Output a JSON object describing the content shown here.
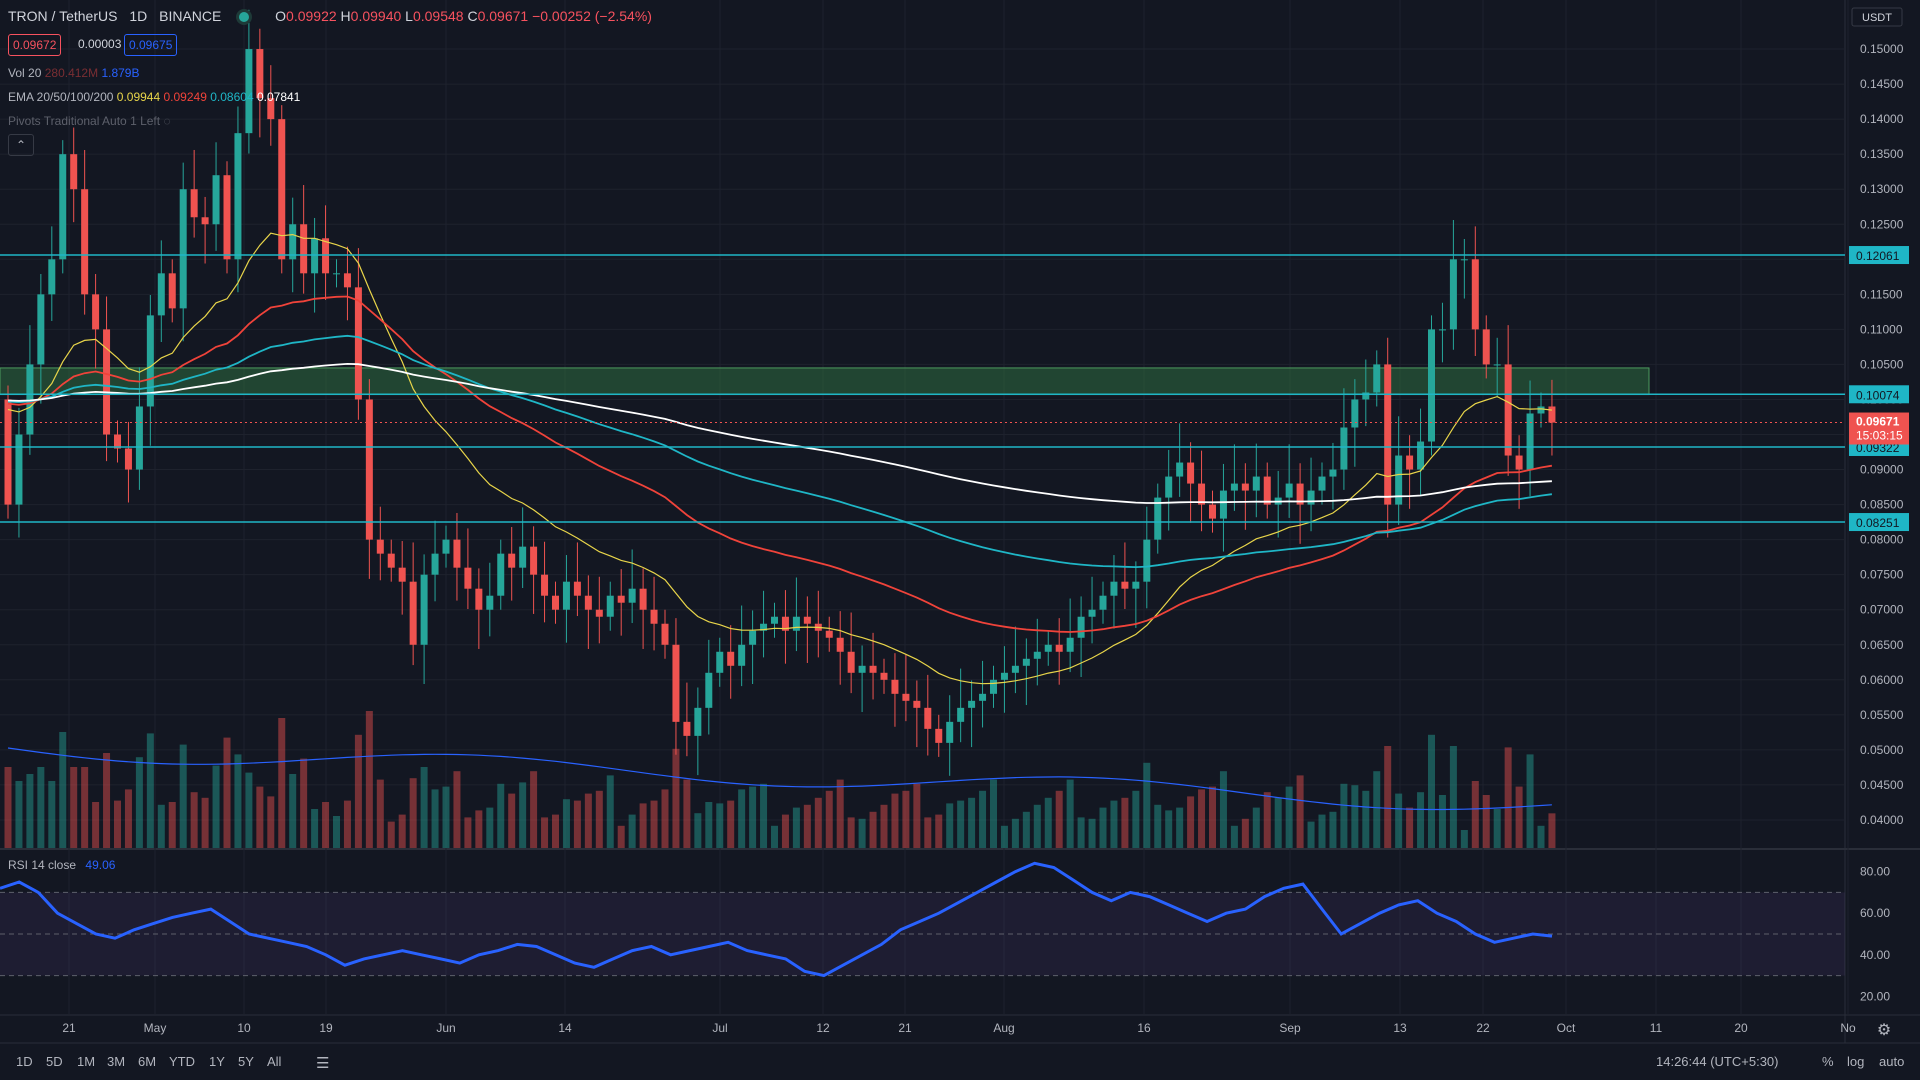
{
  "header": {
    "symbol": "TRON / TetherUS",
    "interval": "1D",
    "exchange": "BINANCE",
    "o_label": "O",
    "o": "0.09922",
    "h_label": "H",
    "h": "0.09940",
    "l_label": "L",
    "l": "0.09548",
    "c_label": "C",
    "c": "0.09671",
    "change": "−0.00252 (−2.54%)",
    "bid": "0.09672",
    "spread": "0.00003",
    "ask": "0.09675"
  },
  "indicators": {
    "vol_label": "Vol 20",
    "vol_value1": "280.412M",
    "vol_value2": "1.879B",
    "ema_label": "EMA 20/50/100/200",
    "ema20": "0.09944",
    "ema50": "0.09249",
    "ema100": "0.08604",
    "ema200": "0.07841",
    "pivots_label": "Pivots Traditional Auto 1 Left",
    "rsi_label": "RSI 14 close",
    "rsi_value": "49.06"
  },
  "price_axis": {
    "currency": "USDT",
    "ticks": [
      "0.15000",
      "0.14500",
      "0.14000",
      "0.13500",
      "0.13000",
      "0.12500",
      "0.12000",
      "0.11500",
      "0.11000",
      "0.10500",
      "0.10000",
      "0.09500",
      "0.09000",
      "0.08500",
      "0.08000",
      "0.07500",
      "0.07000",
      "0.06500",
      "0.06000",
      "0.05500",
      "0.05000",
      "0.04500",
      "0.04000"
    ],
    "levels": [
      "0.12061",
      "0.10074",
      "0.09322",
      "0.08251"
    ],
    "last_price": "0.09671",
    "countdown": "15:03:15"
  },
  "rsi_axis": {
    "ticks": [
      "80.00",
      "60.00",
      "40.00",
      "20.00"
    ]
  },
  "time_axis": {
    "labels": [
      "21",
      "May",
      "10",
      "19",
      "Jun",
      "14",
      "Jul",
      "12",
      "21",
      "Aug",
      "16",
      "Sep",
      "13",
      "22",
      "Oct",
      "11",
      "20",
      "No"
    ]
  },
  "bottom_bar": {
    "timeframes": [
      "1D",
      "5D",
      "1M",
      "3M",
      "6M",
      "YTD",
      "1Y",
      "5Y",
      "All"
    ],
    "clock": "14:26:44 (UTC+5:30)",
    "percent": "%",
    "log": "log",
    "auto": "auto"
  },
  "colors": {
    "up": "#26a69a",
    "down": "#ef5350",
    "ema20": "#e8d54a",
    "ema50": "#f0433a",
    "ema100": "#1fb6c6",
    "ema200": "#ffffff",
    "level": "#1fb6c6",
    "rsi": "#2962ff",
    "zone": "#2e6b3f"
  },
  "chart_data": {
    "type": "candlestick",
    "title": "TRON / TetherUS 1D BINANCE",
    "ylim": [
      0.036,
      0.157
    ],
    "closes": [
      0.085,
      0.095,
      0.105,
      0.115,
      0.12,
      0.135,
      0.13,
      0.115,
      0.11,
      0.095,
      0.093,
      0.09,
      0.099,
      0.112,
      0.118,
      0.113,
      0.13,
      0.126,
      0.125,
      0.132,
      0.12,
      0.138,
      0.15,
      0.143,
      0.14,
      0.12,
      0.125,
      0.118,
      0.123,
      0.118,
      0.118,
      0.116,
      0.1,
      0.08,
      0.078,
      0.076,
      0.074,
      0.065,
      0.075,
      0.078,
      0.08,
      0.076,
      0.073,
      0.07,
      0.072,
      0.078,
      0.076,
      0.079,
      0.075,
      0.072,
      0.07,
      0.074,
      0.072,
      0.07,
      0.069,
      0.072,
      0.071,
      0.073,
      0.07,
      0.068,
      0.065,
      0.054,
      0.052,
      0.056,
      0.061,
      0.064,
      0.062,
      0.065,
      0.067,
      0.068,
      0.069,
      0.067,
      0.069,
      0.068,
      0.067,
      0.066,
      0.064,
      0.061,
      0.062,
      0.061,
      0.06,
      0.058,
      0.057,
      0.056,
      0.053,
      0.051,
      0.054,
      0.056,
      0.057,
      0.058,
      0.06,
      0.061,
      0.062,
      0.063,
      0.064,
      0.065,
      0.064,
      0.066,
      0.069,
      0.07,
      0.072,
      0.074,
      0.073,
      0.074,
      0.08,
      0.086,
      0.089,
      0.091,
      0.088,
      0.085,
      0.083,
      0.087,
      0.088,
      0.087,
      0.089,
      0.085,
      0.086,
      0.088,
      0.085,
      0.087,
      0.089,
      0.09,
      0.096,
      0.1,
      0.101,
      0.105,
      0.085,
      0.092,
      0.09,
      0.094,
      0.11,
      0.11,
      0.12,
      0.12,
      0.11,
      0.105,
      0.105,
      0.092,
      0.09,
      0.098,
      0.099,
      0.0967
    ],
    "ema20": [
      0.105,
      0.11,
      0.115,
      0.12,
      0.122,
      0.123,
      0.125,
      0.126,
      0.127,
      0.125,
      0.123,
      0.121,
      0.119,
      0.118,
      0.12,
      0.123,
      0.126,
      0.128,
      0.129,
      0.129,
      0.128,
      0.126,
      0.124,
      0.122,
      0.12,
      0.118,
      0.115,
      0.11,
      0.105,
      0.1,
      0.096,
      0.092,
      0.089,
      0.087,
      0.085,
      0.083,
      0.081,
      0.079,
      0.078,
      0.077,
      0.077,
      0.076,
      0.075,
      0.074,
      0.073,
      0.072,
      0.071,
      0.07,
      0.069,
      0.068,
      0.068,
      0.067,
      0.066,
      0.065,
      0.064,
      0.063,
      0.063,
      0.064,
      0.066,
      0.069,
      0.072,
      0.076,
      0.08,
      0.083,
      0.085,
      0.087,
      0.088,
      0.089,
      0.09,
      0.09,
      0.091,
      0.092,
      0.095,
      0.099,
      0.102,
      0.1,
      0.099
    ],
    "rsi": [
      72,
      75,
      70,
      60,
      55,
      50,
      48,
      52,
      55,
      58,
      60,
      62,
      56,
      50,
      48,
      46,
      44,
      40,
      35,
      38,
      40,
      42,
      40,
      38,
      36,
      40,
      42,
      45,
      44,
      40,
      36,
      34,
      38,
      42,
      44,
      40,
      42,
      44,
      46,
      42,
      40,
      38,
      32,
      30,
      35,
      40,
      45,
      52,
      56,
      60,
      65,
      70,
      75,
      80,
      84,
      82,
      76,
      70,
      66,
      70,
      68,
      64,
      60,
      56,
      60,
      62,
      68,
      72,
      74,
      62,
      50,
      55,
      60,
      64,
      66,
      60,
      56,
      50,
      46,
      48,
      50,
      49
    ]
  }
}
